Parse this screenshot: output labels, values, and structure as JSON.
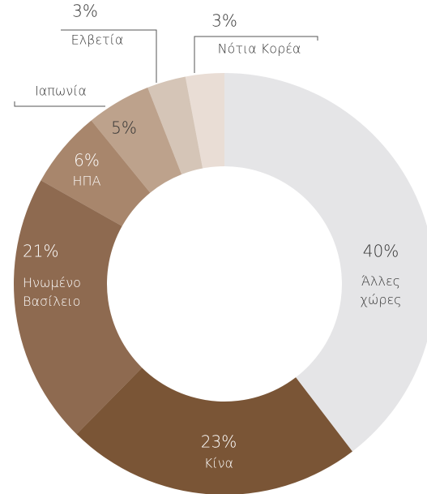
{
  "chart_data": {
    "type": "donut",
    "categories": [
      "Άλλες χώρες",
      "Κίνα",
      "Ηνωμένο Βασίλειο",
      "ΗΠΑ",
      "Ιαπωνία",
      "Ελβετία",
      "Νότια Κορέα"
    ],
    "values": [
      40,
      23,
      21,
      6,
      5,
      3,
      3
    ],
    "value_labels": [
      "40%",
      "23%",
      "21%",
      "6%",
      "5%",
      "3%",
      "3%"
    ],
    "colors": [
      "#e5e5e7",
      "#7a5536",
      "#8e6a50",
      "#a8866c",
      "#bda28c",
      "#d5c5b7",
      "#e9ddd5"
    ]
  }
}
